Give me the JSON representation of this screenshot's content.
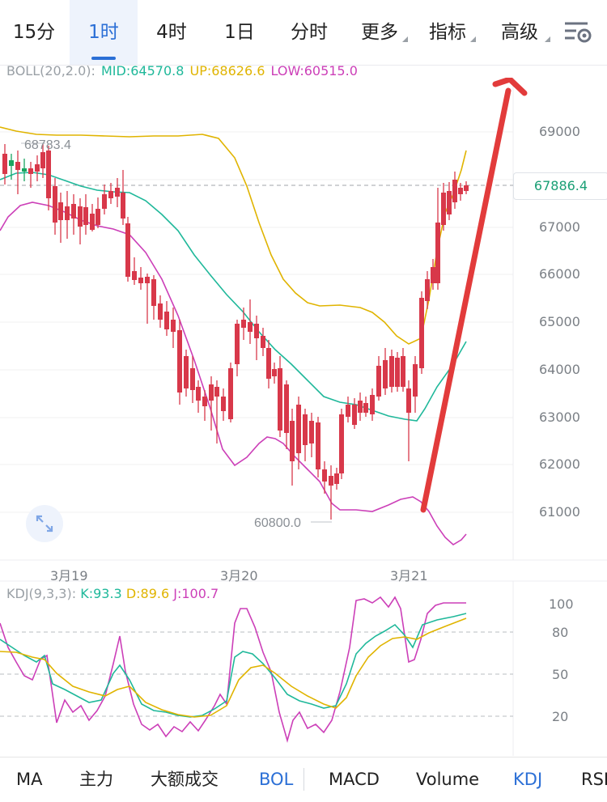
{
  "top_tabs": [
    {
      "label": "15分",
      "active": false
    },
    {
      "label": "1时",
      "active": true
    },
    {
      "label": "4时",
      "active": false
    },
    {
      "label": "1日",
      "active": false
    },
    {
      "label": "分时",
      "active": false
    },
    {
      "label": "更多",
      "active": false,
      "dropdown": true
    },
    {
      "label": "指标",
      "active": false,
      "dropdown": true
    },
    {
      "label": "高级",
      "active": false,
      "dropdown": true
    }
  ],
  "settings_icon": "chart-settings-icon",
  "boll_legend": {
    "name": "BOLL(20,2.0):",
    "mid": "MID:64570.8",
    "up": "UP:68626.6",
    "low": "LOW:60515.0",
    "colors": {
      "mid": "#1fb89a",
      "up": "#e0b400",
      "low": "#cc3fb8"
    }
  },
  "price_axis": [
    "69000",
    "68000",
    "67000",
    "66000",
    "65000",
    "64000",
    "63000",
    "62000",
    "61000"
  ],
  "current_price": "67886.4",
  "high_marker": "68783.4",
  "low_marker": "60800.0",
  "date_labels": [
    "3月19",
    "3月20",
    "3月21"
  ],
  "kdj_legend": {
    "name": "KDJ(9,3,3):",
    "k": "K:93.3",
    "d": "D:89.6",
    "j": "J:100.7",
    "colors": {
      "k": "#1fb89a",
      "d": "#e0b400",
      "j": "#cc3fb8"
    }
  },
  "kdj_axis": [
    "100",
    "80",
    "50",
    "20"
  ],
  "bottom_tabs": [
    {
      "label": "MA",
      "selected": false
    },
    {
      "label": "主力",
      "selected": false
    },
    {
      "label": "大额成交",
      "selected": false
    },
    {
      "label": "BOL",
      "selected": true
    },
    {
      "label": "MACD",
      "selected": false
    },
    {
      "label": "Volume",
      "selected": false
    },
    {
      "label": "KDJ",
      "selected": true
    },
    {
      "label": "RSI",
      "selected": false
    }
  ],
  "colors": {
    "up_candle": "#1aa560",
    "down_candle": "#d8384a",
    "accent": "#2b6fd6",
    "arrow": "#e23b3b"
  }
}
